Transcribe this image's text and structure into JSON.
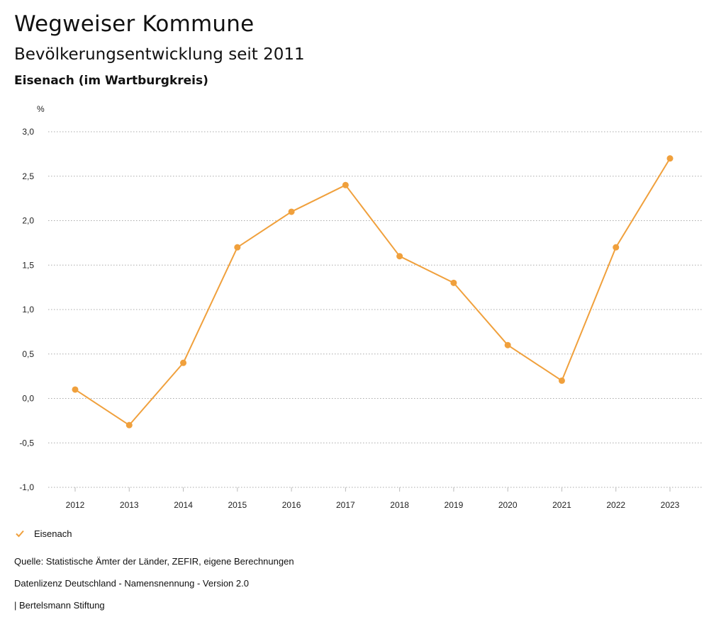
{
  "header": {
    "title": "Wegweiser Kommune",
    "subtitle": "Bevölkerungsentwicklung seit 2011",
    "region": "Eisenach (im Wartburgkreis)"
  },
  "chart_data": {
    "type": "line",
    "ylabel": "%",
    "ylim": [
      -1.0,
      3.0
    ],
    "yticks": [
      3.0,
      2.5,
      2.0,
      1.5,
      1.0,
      0.5,
      0.0,
      -0.5,
      -1.0
    ],
    "ytick_labels": [
      "3,0",
      "2,5",
      "2,0",
      "1,5",
      "1,0",
      "0,5",
      "0,0",
      "-0,5",
      "-1,0"
    ],
    "x": [
      "2012",
      "2013",
      "2014",
      "2015",
      "2016",
      "2017",
      "2018",
      "2019",
      "2020",
      "2021",
      "2022",
      "2023"
    ],
    "series": [
      {
        "name": "Eisenach",
        "color": "#f0a03c",
        "values": [
          0.1,
          -0.3,
          0.4,
          1.7,
          2.1,
          2.4,
          1.6,
          1.3,
          0.6,
          0.2,
          1.7,
          2.7
        ]
      }
    ],
    "grid": "horizontal dotted",
    "legend_position": "bottom-left"
  },
  "legend": {
    "label": "Eisenach",
    "icon": "checkmark-icon",
    "color": "#f0a03c"
  },
  "footer": {
    "source": "Quelle: Statistische Ämter der Länder, ZEFIR, eigene Berechnungen",
    "license": "Datenlizenz Deutschland - Namensnennung - Version 2.0",
    "publisher": "| Bertelsmann Stiftung"
  }
}
